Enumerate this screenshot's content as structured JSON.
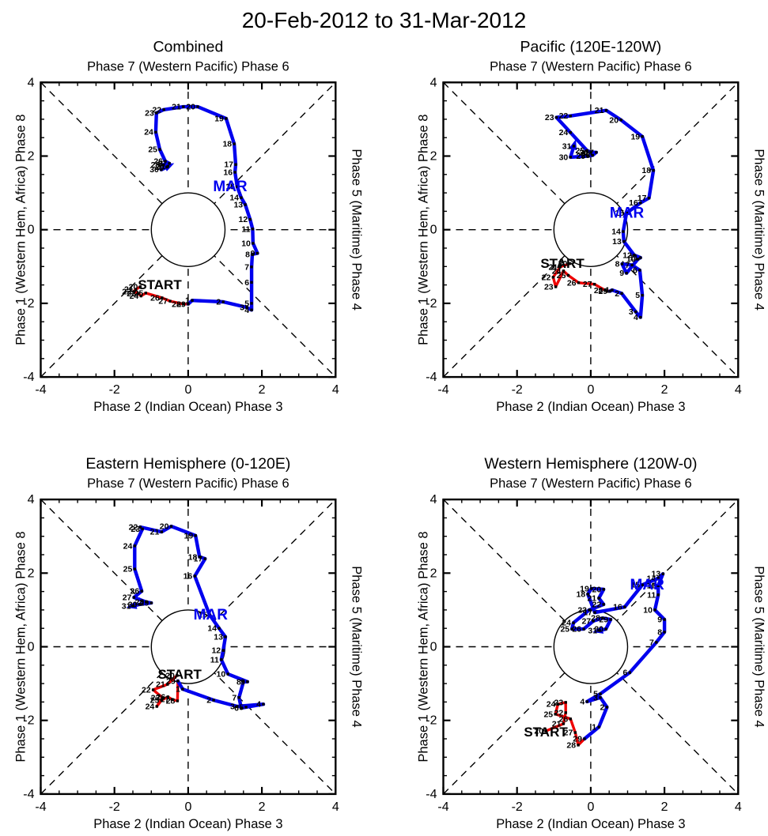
{
  "title": "20-Feb-2012 to 31-Mar-2012",
  "labels": {
    "start": "START",
    "march": "MAR"
  },
  "colors": {
    "february": "#ee0000",
    "march": "#0000ee",
    "axis": "#000000",
    "background": "#ffffff"
  },
  "axes": {
    "top_label": "Phase 7 (Western Pacific) Phase 6",
    "bottom_label": "Phase 2 (Indian Ocean) Phase 3",
    "left_label": "Phase 1 (Western Hem, Africa) Phase 8",
    "right_label": "Phase 5 (Maritime) Phase 4",
    "xlim": [
      -4,
      4
    ],
    "ylim": [
      -4,
      4
    ],
    "major_ticks": [
      -4,
      -2,
      0,
      2,
      4
    ],
    "minor_tick_step": 0.5,
    "unit_circle_radius": 1,
    "grid": "dashed phase-space spokes"
  },
  "chart_data": [
    {
      "type": "line",
      "title": "Combined",
      "xlim": [
        -4,
        4
      ],
      "ylim": [
        -4,
        4
      ],
      "start_xy": [
        -0.77,
        -1.51
      ],
      "mar_xy": [
        1.14,
        1.17
      ],
      "series": [
        {
          "name": "february",
          "color": "#ee0000",
          "points": [
            [
              20,
              -1.3,
              -1.55
            ],
            [
              21,
              -1.42,
              -1.62
            ],
            [
              22,
              -1.48,
              -1.68
            ],
            [
              23,
              -1.35,
              -1.73
            ],
            [
              24,
              -1.28,
              -1.8
            ],
            [
              25,
              -1.15,
              -1.72
            ],
            [
              26,
              -0.71,
              -1.85
            ],
            [
              27,
              -0.49,
              -1.94
            ],
            [
              28,
              -0.13,
              -2.02
            ],
            [
              29,
              0.0,
              -2.02
            ]
          ]
        },
        {
          "name": "march",
          "color": "#0000ee",
          "points": [
            [
              1,
              0.11,
              -1.92
            ],
            [
              2,
              0.95,
              -1.96
            ],
            [
              3,
              1.59,
              -2.11
            ],
            [
              4,
              1.72,
              -2.18
            ],
            [
              5,
              1.72,
              -2.0
            ],
            [
              6,
              1.72,
              -1.43
            ],
            [
              7,
              1.72,
              -1.01
            ],
            [
              8,
              1.74,
              -0.67
            ],
            [
              9,
              1.88,
              -0.64
            ],
            [
              10,
              1.76,
              -0.37
            ],
            [
              11,
              1.75,
              0.02
            ],
            [
              12,
              1.68,
              0.28
            ],
            [
              13,
              1.55,
              0.68
            ],
            [
              14,
              1.44,
              0.87
            ],
            [
              15,
              1.33,
              1.17
            ],
            [
              16,
              1.27,
              1.56
            ],
            [
              17,
              1.29,
              1.77
            ],
            [
              18,
              1.25,
              2.33
            ],
            [
              19,
              1.03,
              3.02
            ],
            [
              20,
              0.26,
              3.34
            ],
            [
              21,
              -0.13,
              3.34
            ],
            [
              22,
              -0.66,
              3.26
            ],
            [
              23,
              -0.86,
              3.17
            ],
            [
              24,
              -0.88,
              2.65
            ],
            [
              25,
              -0.77,
              2.18
            ],
            [
              26,
              -0.62,
              1.86
            ],
            [
              27,
              -0.51,
              1.8
            ],
            [
              28,
              -0.7,
              1.76
            ],
            [
              29,
              -0.58,
              1.7
            ],
            [
              30,
              -0.73,
              1.63
            ],
            [
              31,
              -0.55,
              1.72
            ]
          ]
        }
      ]
    },
    {
      "type": "line",
      "title": "Pacific (120E-120W)",
      "xlim": [
        -4,
        4
      ],
      "ylim": [
        -4,
        4
      ],
      "start_xy": [
        -0.77,
        -0.93
      ],
      "mar_xy": [
        0.98,
        0.46
      ],
      "series": [
        {
          "name": "february",
          "color": "#ee0000",
          "points": [
            [
              20,
              -0.57,
              -0.92
            ],
            [
              21,
              -0.83,
              -1.01
            ],
            [
              22,
              -1.02,
              -1.29
            ],
            [
              23,
              -0.95,
              -1.55
            ],
            [
              24,
              -0.74,
              -1.12
            ],
            [
              25,
              -0.61,
              -1.24
            ],
            [
              26,
              -0.33,
              -1.44
            ],
            [
              27,
              0.1,
              -1.48
            ],
            [
              28,
              0.4,
              -1.65
            ],
            [
              29,
              0.52,
              -1.67
            ]
          ]
        },
        {
          "name": "march",
          "color": "#0000ee",
          "points": [
            [
              1,
              0.58,
              -1.64
            ],
            [
              2,
              0.84,
              -1.73
            ],
            [
              3,
              1.22,
              -2.23
            ],
            [
              4,
              1.35,
              -2.38
            ],
            [
              5,
              1.4,
              -1.78
            ],
            [
              6,
              1.33,
              -1.1
            ],
            [
              7,
              1.12,
              -0.96
            ],
            [
              8,
              0.85,
              -0.93
            ],
            [
              9,
              0.97,
              -1.18
            ],
            [
              10,
              1.28,
              -0.8
            ],
            [
              11,
              1.35,
              -0.76
            ],
            [
              12,
              1.18,
              -0.69
            ],
            [
              13,
              0.9,
              -0.32
            ],
            [
              14,
              0.88,
              -0.05
            ],
            [
              15,
              0.97,
              0.45
            ],
            [
              16,
              1.35,
              0.73
            ],
            [
              17,
              1.58,
              0.86
            ],
            [
              18,
              1.7,
              1.61
            ],
            [
              19,
              1.4,
              2.53
            ],
            [
              20,
              0.82,
              2.98
            ],
            [
              21,
              0.42,
              3.24
            ],
            [
              22,
              -0.55,
              3.09
            ],
            [
              23,
              -0.93,
              3.05
            ],
            [
              24,
              -0.55,
              2.64
            ],
            [
              25,
              -0.1,
              2.15
            ],
            [
              26,
              0.0,
              2.1
            ],
            [
              27,
              0.15,
              2.1
            ],
            [
              28,
              0.05,
              2.02
            ],
            [
              29,
              -0.08,
              2.0
            ],
            [
              30,
              -0.55,
              1.97
            ],
            [
              31,
              -0.46,
              2.27
            ]
          ]
        }
      ]
    },
    {
      "type": "line",
      "title": "Eastern Hemisphere (0-120E)",
      "xlim": [
        -4,
        4
      ],
      "ylim": [
        -4,
        4
      ],
      "start_xy": [
        -0.23,
        -0.76
      ],
      "mar_xy": [
        0.61,
        0.87
      ],
      "series": [
        {
          "name": "february",
          "color": "#ee0000",
          "points": [
            [
              20,
              -0.3,
              -0.78
            ],
            [
              21,
              -0.56,
              -1.02
            ],
            [
              22,
              -0.95,
              -1.17
            ],
            [
              23,
              -0.7,
              -1.38
            ],
            [
              24,
              -0.85,
              -1.62
            ],
            [
              25,
              -0.72,
              -1.45
            ],
            [
              26,
              -0.55,
              -1.36
            ],
            [
              27,
              -0.44,
              -1.43
            ],
            [
              28,
              -0.29,
              -1.47
            ],
            [
              29,
              -0.28,
              -0.93
            ]
          ]
        },
        {
          "name": "march",
          "color": "#0000ee",
          "points": [
            [
              1,
              -0.15,
              -1.15
            ],
            [
              2,
              0.69,
              -1.45
            ],
            [
              3,
              1.33,
              -1.62
            ],
            [
              4,
              2.04,
              -1.56
            ],
            [
              5,
              1.57,
              -1.64
            ],
            [
              6,
              1.44,
              -1.66
            ],
            [
              7,
              1.38,
              -1.38
            ],
            [
              8,
              1.5,
              -0.95
            ],
            [
              9,
              1.61,
              -0.95
            ],
            [
              10,
              1.08,
              -0.74
            ],
            [
              11,
              0.9,
              -0.35
            ],
            [
              12,
              0.95,
              -0.1
            ],
            [
              13,
              1.01,
              0.27
            ],
            [
              14,
              0.84,
              0.5
            ],
            [
              15,
              0.58,
              0.87
            ],
            [
              16,
              0.18,
              1.92
            ],
            [
              17,
              0.46,
              2.39
            ],
            [
              18,
              0.31,
              2.44
            ],
            [
              19,
              0.2,
              3.02
            ],
            [
              20,
              -0.46,
              3.27
            ],
            [
              21,
              -0.72,
              3.12
            ],
            [
              22,
              -1.3,
              3.25
            ],
            [
              23,
              -1.24,
              3.2
            ],
            [
              24,
              -1.45,
              2.74
            ],
            [
              25,
              -1.45,
              2.11
            ],
            [
              26,
              -1.26,
              1.51
            ],
            [
              27,
              -1.47,
              1.34
            ],
            [
              28,
              -1.13,
              1.21
            ],
            [
              29,
              -1.0,
              1.19
            ],
            [
              30,
              -1.32,
              1.15
            ],
            [
              31,
              -1.49,
              1.11
            ]
          ]
        }
      ]
    },
    {
      "type": "line",
      "title": "Western Hemisphere (120W-0)",
      "xlim": [
        -4,
        4
      ],
      "ylim": [
        -4,
        4
      ],
      "start_xy": [
        -1.22,
        -2.33
      ],
      "mar_xy": [
        1.53,
        1.68
      ],
      "series": [
        {
          "name": "february",
          "color": "#ee0000",
          "points": [
            [
              20,
              -1.22,
              -2.29
            ],
            [
              21,
              -0.74,
              -2.09
            ],
            [
              22,
              -0.68,
              -1.79
            ],
            [
              23,
              -0.68,
              -1.51
            ],
            [
              24,
              -0.89,
              -1.56
            ],
            [
              25,
              -0.96,
              -1.83
            ],
            [
              26,
              -0.55,
              -1.96
            ],
            [
              27,
              -0.42,
              -2.33
            ],
            [
              28,
              -0.34,
              -2.67
            ],
            [
              29,
              -0.17,
              -2.5
            ]
          ]
        },
        {
          "name": "march",
          "color": "#0000ee",
          "points": [
            [
              1,
              0.22,
              -2.18
            ],
            [
              2,
              0.44,
              -1.64
            ],
            [
              3,
              0.26,
              -1.38
            ],
            [
              4,
              -0.1,
              -1.49
            ],
            [
              5,
              0.26,
              -1.28
            ],
            [
              6,
              1.06,
              -0.7
            ],
            [
              7,
              1.78,
              0.12
            ],
            [
              8,
              2.0,
              0.4
            ],
            [
              9,
              2.0,
              0.74
            ],
            [
              10,
              1.74,
              1.0
            ],
            [
              11,
              1.83,
              1.41
            ],
            [
              12,
              1.83,
              1.66
            ],
            [
              13,
              1.96,
              1.98
            ],
            [
              14,
              1.83,
              1.86
            ],
            [
              15,
              1.4,
              1.68
            ],
            [
              16,
              0.92,
              1.08
            ],
            [
              17,
              0.11,
              0.93
            ],
            [
              18,
              -0.08,
              1.43
            ],
            [
              19,
              0.02,
              1.58
            ],
            [
              20,
              0.35,
              1.56
            ],
            [
              21,
              0.22,
              1.32
            ],
            [
              22,
              0.35,
              1.15
            ],
            [
              23,
              -0.04,
              1.0
            ],
            [
              24,
              -0.47,
              0.65
            ],
            [
              25,
              -0.51,
              0.48
            ],
            [
              26,
              -0.19,
              0.48
            ],
            [
              27,
              0.07,
              0.7
            ],
            [
              28,
              0.32,
              0.78
            ],
            [
              29,
              0.54,
              0.74
            ],
            [
              30,
              0.41,
              0.48
            ],
            [
              31,
              0.24,
              0.44
            ]
          ]
        }
      ]
    }
  ]
}
